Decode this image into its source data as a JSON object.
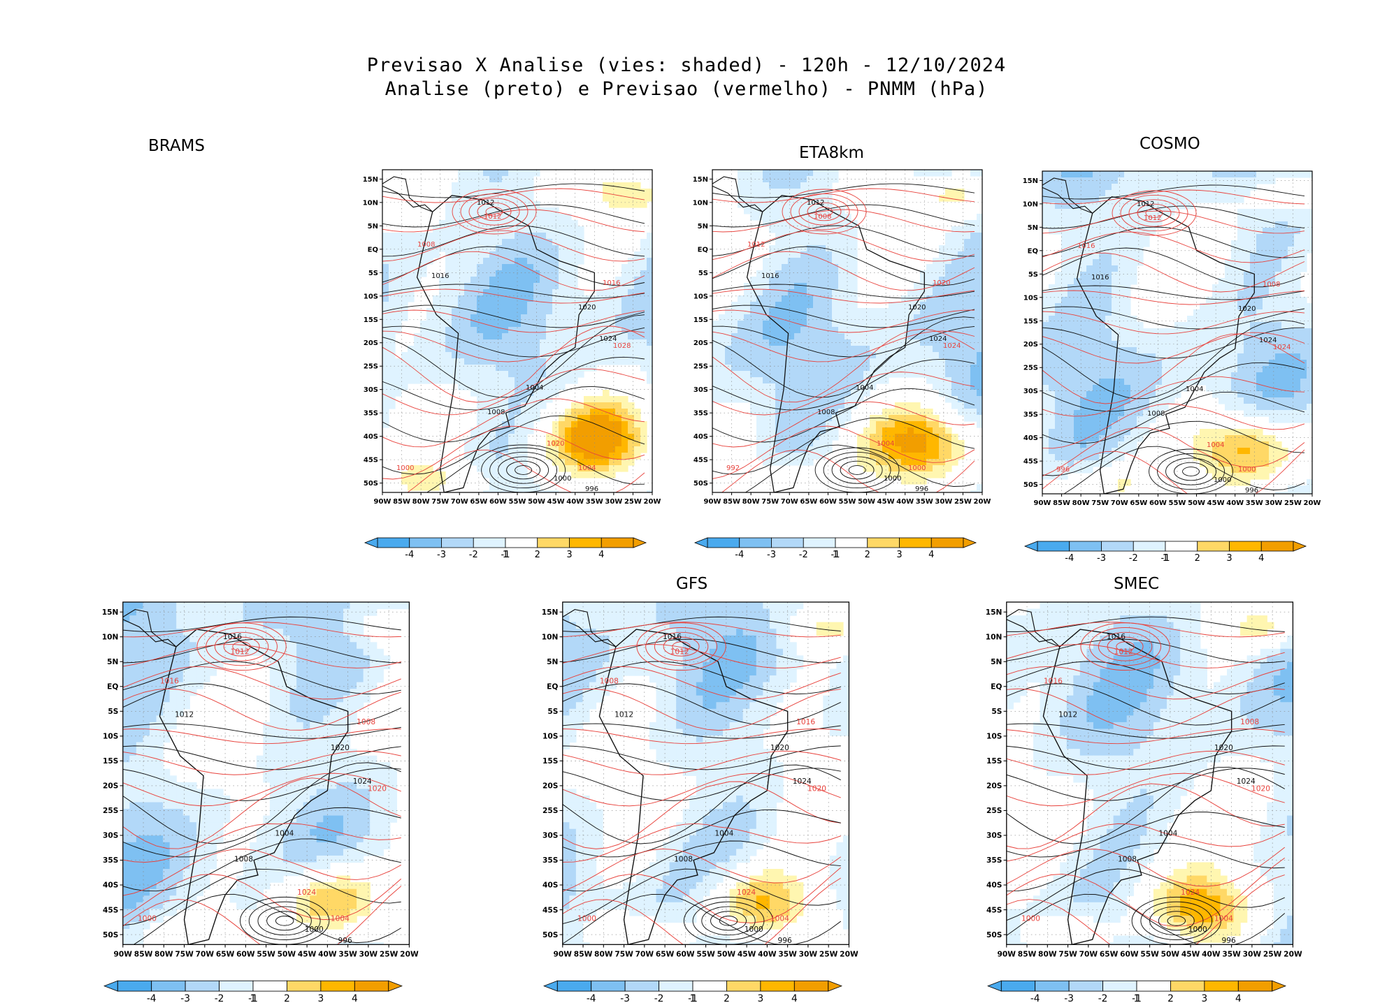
{
  "header": {
    "title_line1": "Previsao X Analise (vies: shaded) - 120h - 12/10/2024",
    "title_line2": "Analise (preto) e Previsao (vermelho) - PNMM (hPa)"
  },
  "axes": {
    "lon_labels": [
      "90W",
      "85W",
      "80W",
      "75W",
      "70W",
      "65W",
      "60W",
      "55W",
      "50W",
      "45W",
      "40W",
      "35W",
      "30W",
      "25W",
      "20W"
    ],
    "lat_labels": [
      "15N",
      "10N",
      "5N",
      "EQ",
      "5S",
      "10S",
      "15S",
      "20S",
      "25S",
      "30S",
      "35S",
      "40S",
      "45S",
      "50S"
    ]
  },
  "colorbar": {
    "labels": [
      "-4",
      "-3",
      "-2",
      "-1",
      "1",
      "2",
      "3",
      "4"
    ],
    "colors": [
      "#4aaaee",
      "#7ec0f2",
      "#b2d8f8",
      "#dff3ff",
      "#ffffff",
      "#fff6b0",
      "#ffd866",
      "#ffb700",
      "#f29e00"
    ]
  },
  "panels": [
    {
      "id": "brams",
      "label": "BRAMS",
      "contours_black": [
        "1012",
        "1016",
        "1020",
        "1024",
        "1008",
        "1004",
        "1000",
        "996"
      ],
      "contours_red": [
        "1012",
        "1008",
        "1016",
        "1028",
        "1020",
        "1004",
        "1000"
      ]
    },
    {
      "id": "eta8km",
      "label": "ETA8km",
      "contours_black": [
        "1012",
        "1016",
        "1020",
        "1024",
        "1008",
        "1004",
        "1000",
        "996"
      ],
      "contours_red": [
        "1008",
        "1012",
        "1020",
        "1024",
        "1004",
        "1000",
        "992"
      ]
    },
    {
      "id": "cosmo",
      "label": "COSMO",
      "contours_black": [
        "1012",
        "1016",
        "1020",
        "1024",
        "1008",
        "1004",
        "1000",
        "996"
      ],
      "contours_red": [
        "1012",
        "1016",
        "1008",
        "1024",
        "1004",
        "1000",
        "996"
      ]
    },
    {
      "id": "model4",
      "label": "",
      "contours_black": [
        "1016",
        "1012",
        "1020",
        "1024",
        "1008",
        "1004",
        "1000",
        "996"
      ],
      "contours_red": [
        "1012",
        "1016",
        "1008",
        "1020",
        "1024",
        "1004",
        "1000"
      ]
    },
    {
      "id": "gfs",
      "label": "GFS",
      "contours_black": [
        "1016",
        "1012",
        "1020",
        "1024",
        "1008",
        "1004",
        "1000",
        "996"
      ],
      "contours_red": [
        "1012",
        "1008",
        "1016",
        "1020",
        "1024",
        "1004",
        "1000"
      ]
    },
    {
      "id": "smec",
      "label": "SMEC",
      "contours_black": [
        "1016",
        "1012",
        "1020",
        "1024",
        "1008",
        "1004",
        "1000",
        "996"
      ],
      "contours_red": [
        "1012",
        "1016",
        "1008",
        "1020",
        "1024",
        "1004",
        "1000"
      ]
    }
  ]
}
